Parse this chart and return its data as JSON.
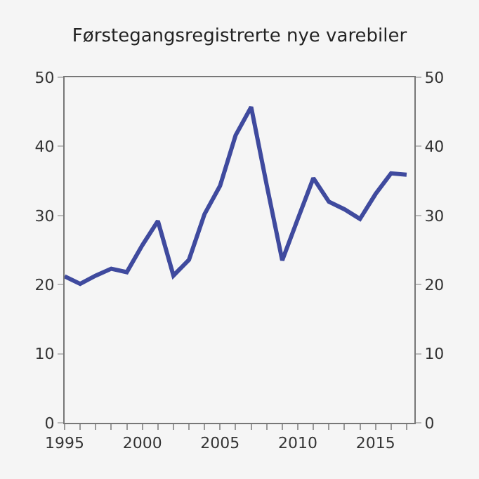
{
  "chart_data": {
    "type": "line",
    "title": "Førstegangsregistrerte nye varebiler",
    "x": [
      1995,
      1996,
      1997,
      1998,
      1999,
      2000,
      2001,
      2002,
      2003,
      2004,
      2005,
      2006,
      2007,
      2008,
      2009,
      2010,
      2011,
      2012,
      2013,
      2014,
      2015,
      2016,
      2017
    ],
    "series": [
      {
        "color": "#3f4a9e",
        "values": [
          21.2,
          20.1,
          21.3,
          22.3,
          21.8,
          25.7,
          29.2,
          21.3,
          23.6,
          30.2,
          34.3,
          41.6,
          45.7,
          34.4,
          23.5,
          29.5,
          35.4,
          32,
          30.9,
          29.5,
          33.1,
          36.1,
          35.9
        ]
      }
    ],
    "xlim": [
      1995,
      2017.5
    ],
    "xticks": [
      1995,
      {
        "value": 1996,
        "label": null
      },
      {
        "value": 1997,
        "label": null
      },
      {
        "value": 1998,
        "label": null
      },
      {
        "value": 1999,
        "label": null
      },
      2000,
      {
        "value": 2001,
        "label": null
      },
      {
        "value": 2002,
        "label": null
      },
      {
        "value": 2003,
        "label": null
      },
      {
        "value": 2004,
        "label": null
      },
      2005,
      {
        "value": 2006,
        "label": null
      },
      {
        "value": 2007,
        "label": null
      },
      {
        "value": 2008,
        "label": null
      },
      {
        "value": 2009,
        "label": null
      },
      2010,
      {
        "value": 2011,
        "label": null
      },
      {
        "value": 2012,
        "label": null
      },
      {
        "value": 2013,
        "label": null
      },
      {
        "value": 2014,
        "label": null
      },
      2015,
      {
        "value": 2016,
        "label": null
      },
      {
        "value": 2017,
        "label": null
      }
    ],
    "ylim": [
      0,
      50
    ],
    "yticks": [
      0,
      10,
      20,
      30,
      40,
      50
    ],
    "y2lim": [
      0,
      50
    ],
    "y2ticks": [
      0,
      10,
      20,
      30,
      40,
      50
    ],
    "grid": false,
    "marker": "none",
    "line_style": "solid"
  }
}
